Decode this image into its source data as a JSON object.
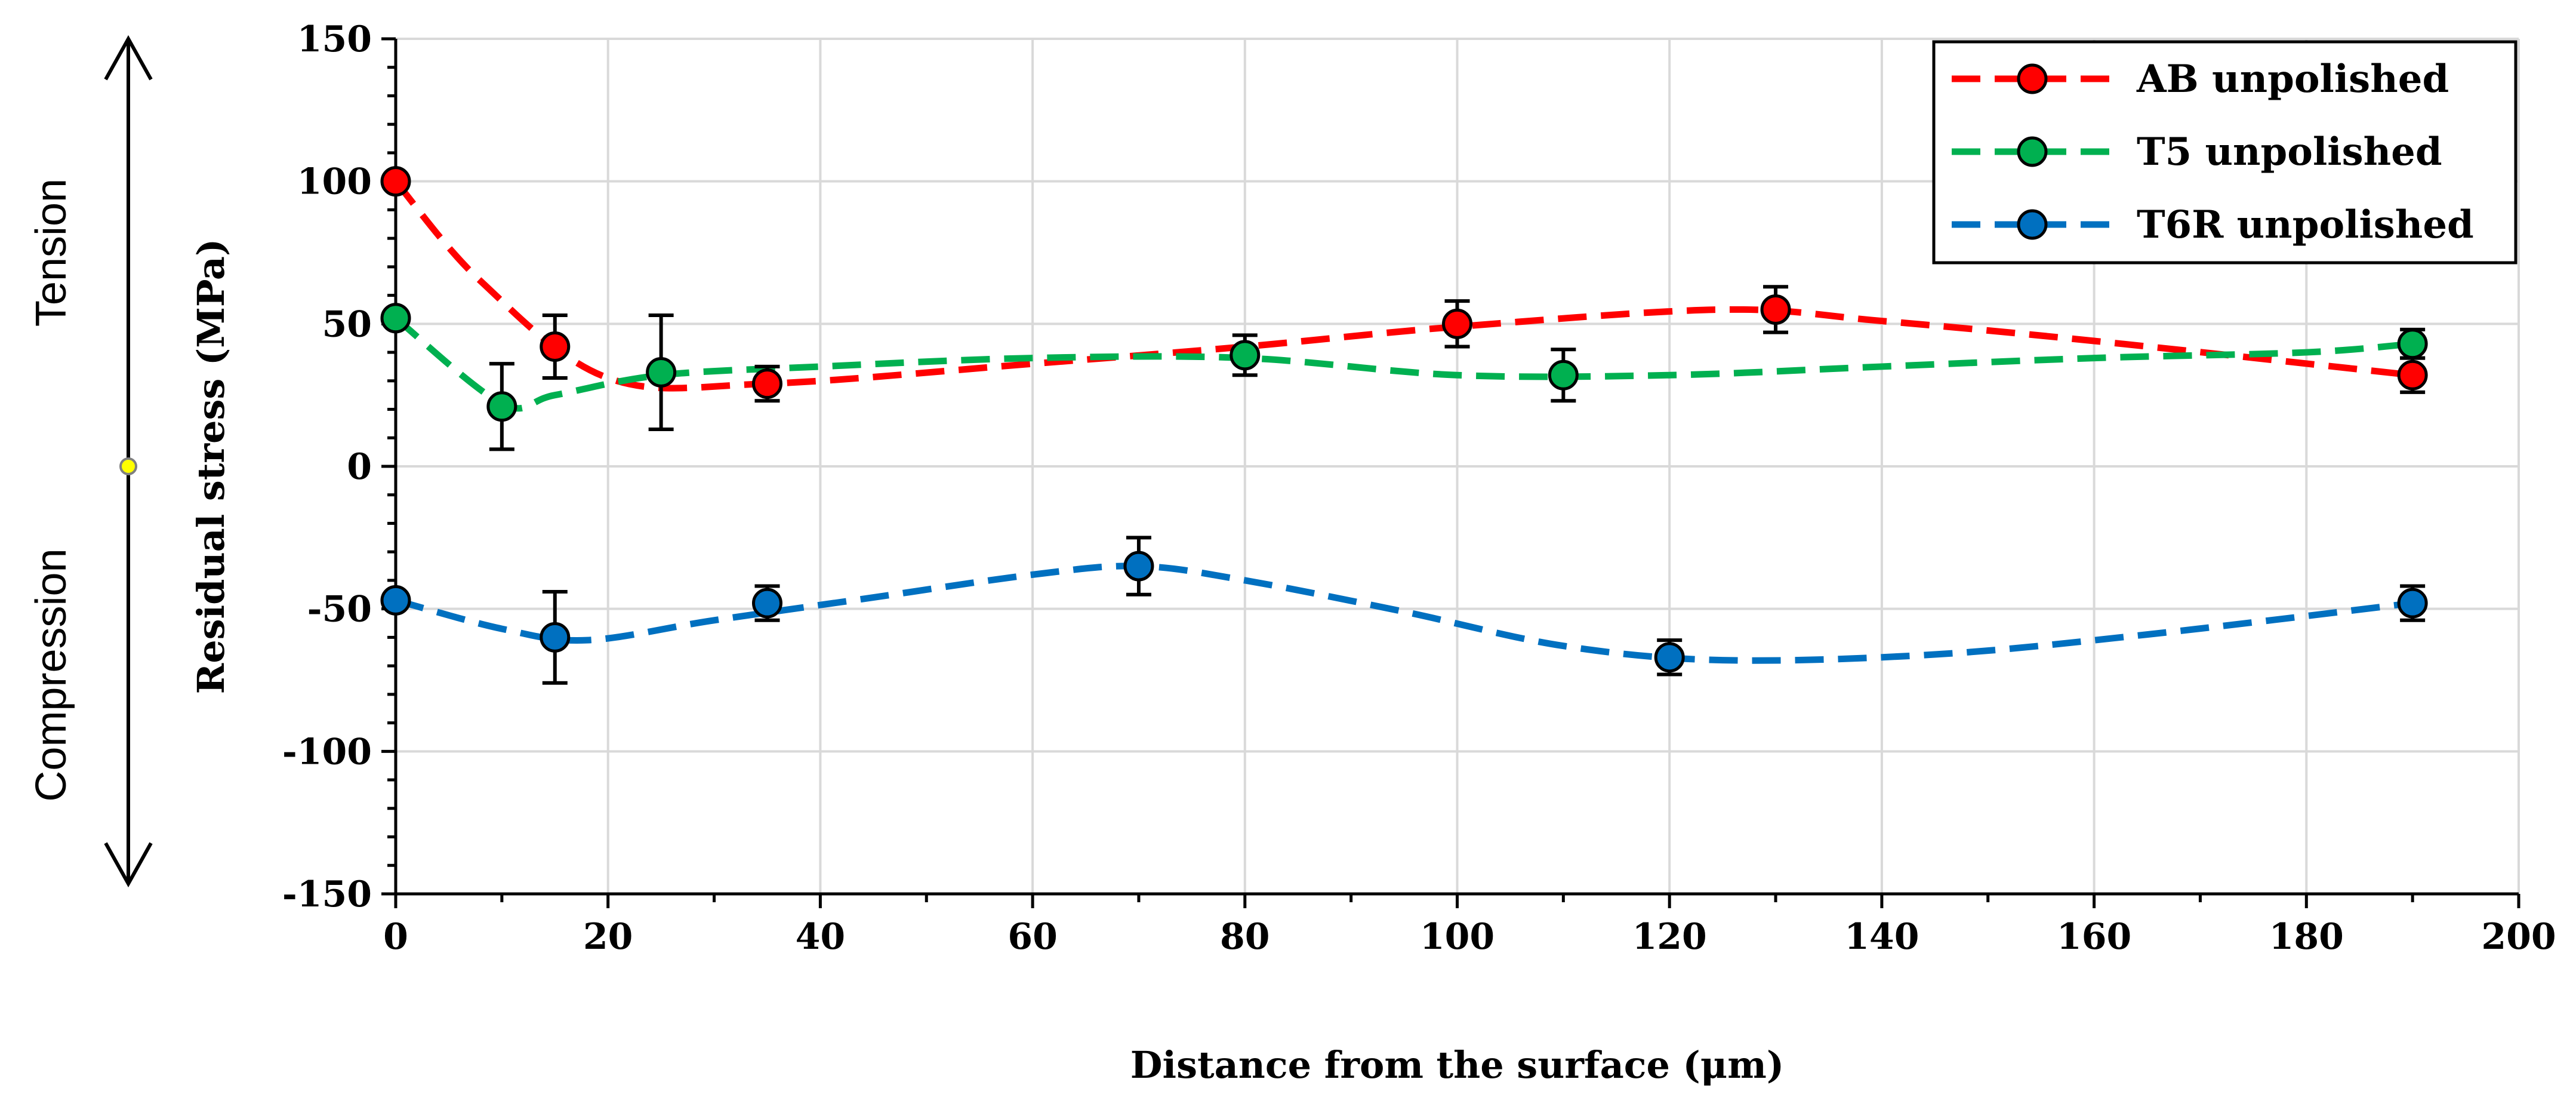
{
  "chart_data": {
    "type": "scatter",
    "xlabel": "Distance from the surface (μm)",
    "ylabel": "Residual stress (MPa)",
    "xlim": [
      0,
      200
    ],
    "ylim": [
      -150,
      150
    ],
    "x_ticks": [
      "0",
      "20",
      "40",
      "60",
      "80",
      "100",
      "120",
      "140",
      "160",
      "180",
      "200"
    ],
    "y_ticks": [
      "150",
      "100",
      "50",
      "0",
      "-50",
      "-100",
      "-150"
    ],
    "grid": true,
    "legend_position": "top-right",
    "side_annotations": {
      "top": "Tension",
      "bottom": "Compression"
    },
    "series": [
      {
        "name": "AB unpolished",
        "color": "#ff0000",
        "x": [
          0,
          15,
          35,
          100,
          130,
          190
        ],
        "y": [
          100,
          42,
          29,
          50,
          55,
          32
        ],
        "err": [
          0,
          11,
          6,
          8,
          8,
          6
        ],
        "trend_x": [
          0,
          8,
          20,
          35,
          60,
          80,
          100,
          125,
          140,
          160,
          190
        ],
        "trend_y": [
          100,
          65,
          31,
          29,
          36,
          42,
          49,
          55,
          51,
          44,
          32
        ]
      },
      {
        "name": "T5 unpolished",
        "color": "#00b050",
        "x": [
          0,
          10,
          25,
          80,
          110,
          190
        ],
        "y": [
          52,
          21,
          33,
          39,
          32,
          43
        ],
        "err": [
          0,
          15,
          20,
          7,
          9,
          5
        ],
        "trend_x": [
          0,
          10,
          15,
          25,
          40,
          60,
          80,
          100,
          120,
          140,
          160,
          180,
          190
        ],
        "trend_y": [
          52,
          22,
          25,
          32,
          35,
          38,
          38,
          32,
          32,
          35,
          38,
          40,
          43
        ],
        "secondary": true
      },
      {
        "name": "T6R unpolished",
        "color": "#0070c0",
        "x": [
          0,
          15,
          35,
          70,
          120,
          190
        ],
        "y": [
          -47,
          -60,
          -48,
          -35,
          -67,
          -48
        ],
        "err": [
          0,
          16,
          6,
          10,
          6,
          6
        ],
        "trend_x": [
          0,
          10,
          18,
          30,
          45,
          60,
          70,
          80,
          95,
          110,
          125,
          145,
          165,
          190
        ],
        "trend_y": [
          -47,
          -57,
          -61,
          -54,
          -46,
          -38,
          -35,
          -40,
          -51,
          -63,
          -68,
          -66,
          -59,
          -48
        ]
      }
    ]
  }
}
